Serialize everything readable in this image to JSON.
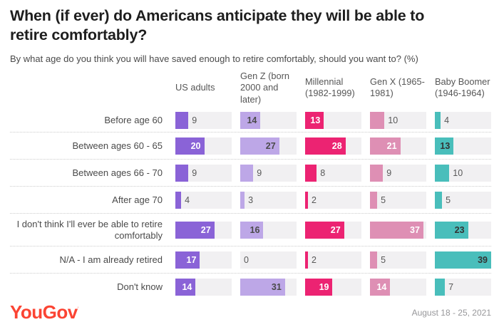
{
  "title": "When (if ever) do Americans anticipate they will be able to retire comfortably?",
  "subtitle": "By what age do you think you will have saved enough to retire comfortably, should you want to? (%)",
  "footer": {
    "logo_text": "YouGov",
    "logo_mark": "'",
    "logo_color": "#fb4433",
    "date": "August 18 - 25, 2021"
  },
  "colors": {
    "track": "#f1f0f2",
    "separator": "#cccccc",
    "outside_value_text": "#595959"
  },
  "chart_data": {
    "type": "bar",
    "orientation": "horizontal",
    "max_scale": 39,
    "inside_label_min": 13,
    "categories": [
      "Before age 60",
      "Between ages 60 - 65",
      "Between ages 66 - 70",
      "After age 70",
      "I don't think I'll ever be able to retire comfortably",
      "N/A - I am already retired",
      "Don't know"
    ],
    "series": [
      {
        "name": "US adults",
        "color": "#8a63d7",
        "inside_text_color": "#ffffff",
        "values": [
          9,
          20,
          9,
          4,
          27,
          17,
          14
        ]
      },
      {
        "name": "Gen Z (born 2000 and later)",
        "color": "#bda7e7",
        "inside_text_color": "#4a4a4a",
        "values": [
          14,
          27,
          9,
          3,
          16,
          0,
          31
        ]
      },
      {
        "name": "Millennial (1982-1999)",
        "color": "#ec2372",
        "inside_text_color": "#ffffff",
        "values": [
          13,
          28,
          8,
          2,
          27,
          2,
          19
        ]
      },
      {
        "name": "Gen X (1965-1981)",
        "color": "#de8fb4",
        "inside_text_color": "#ffffff",
        "values": [
          10,
          21,
          9,
          5,
          37,
          5,
          14
        ]
      },
      {
        "name": "Baby Boomer (1946-1964)",
        "color": "#49bebb",
        "inside_text_color": "#333333",
        "values": [
          4,
          13,
          10,
          5,
          23,
          39,
          7
        ]
      }
    ]
  }
}
